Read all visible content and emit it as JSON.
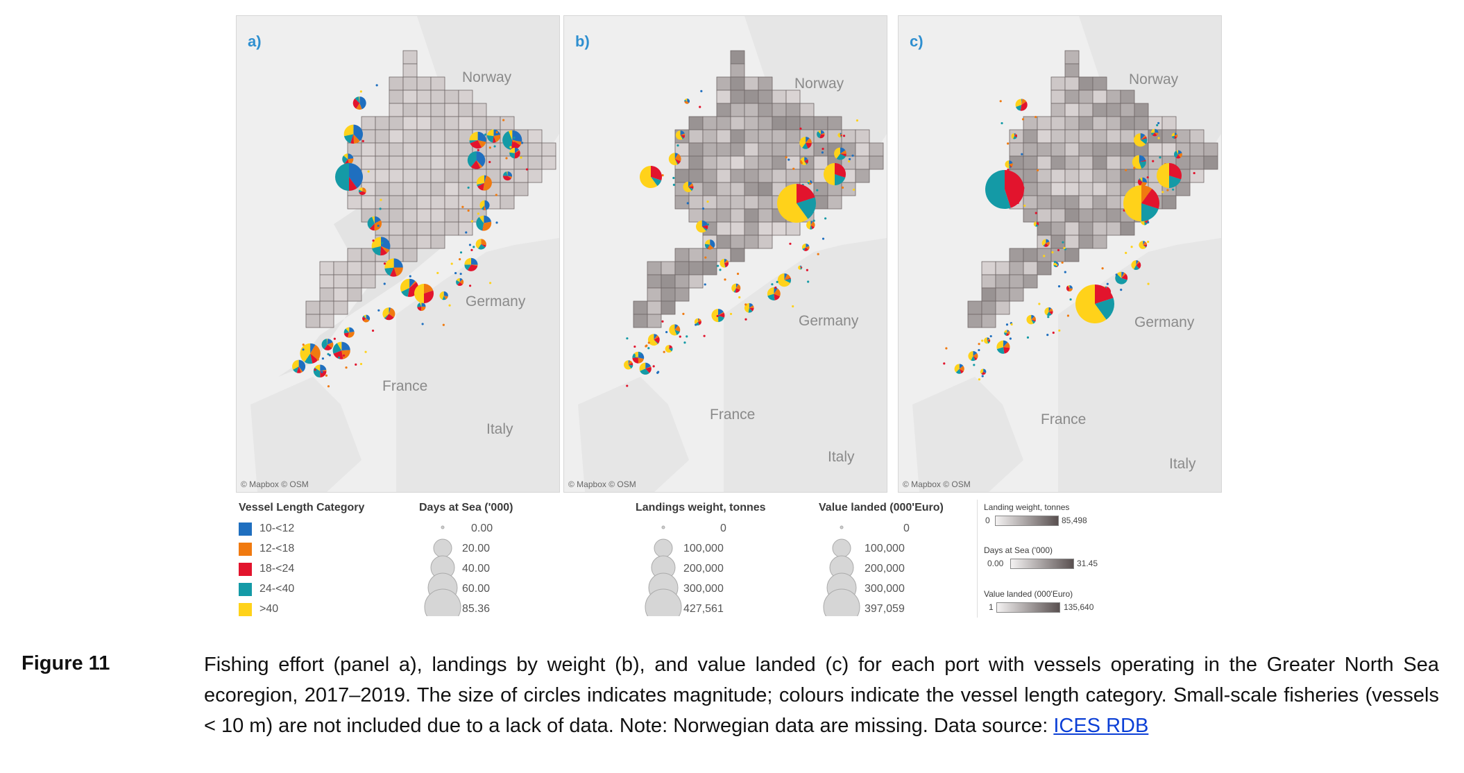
{
  "panels": [
    {
      "label": "a)",
      "countries": [
        "Norway",
        "Germany",
        "France",
        "Italy"
      ],
      "credit": "© Mapbox © OSM"
    },
    {
      "label": "b)",
      "countries": [
        "Norway",
        "Germany",
        "France",
        "Italy"
      ],
      "credit": "© Mapbox © OSM"
    },
    {
      "label": "c)",
      "countries": [
        "Norway",
        "Germany",
        "France",
        "Italy"
      ],
      "credit": "© Mapbox © OSM"
    }
  ],
  "vessel_legend": {
    "title": "Vessel Length Category",
    "items": [
      {
        "label": "10-<12",
        "color": "#1f6fbf"
      },
      {
        "label": "12-<18",
        "color": "#f07a10"
      },
      {
        "label": "18-<24",
        "color": "#e2142d"
      },
      {
        "label": "24-<40",
        "color": "#149aa6"
      },
      {
        "label": ">40",
        "color": "#ffd21a"
      }
    ]
  },
  "days_legend": {
    "title": "Days at Sea ('000)",
    "values": [
      "0.00",
      "20.00",
      "40.00",
      "60.00",
      "85.36"
    ]
  },
  "landings_legend": {
    "title": "Landings weight, tonnes",
    "values": [
      "0",
      "100,000",
      "200,000",
      "300,000",
      "427,561"
    ]
  },
  "value_legend": {
    "title": "Value landed (000'Euro)",
    "values": [
      "0",
      "100,000",
      "200,000",
      "300,000",
      "397,059"
    ]
  },
  "gradient_legends": [
    {
      "title": "Landing weight, tonnes",
      "min": "0",
      "max": "85,498"
    },
    {
      "title": "Days at Sea ('000)",
      "min": "0.00",
      "max": "31.45"
    },
    {
      "title": "Value landed (000'Euro)",
      "min": "1",
      "max": "135,640"
    }
  ],
  "caption": {
    "label": "Figure 11",
    "text": "Fishing effort (panel a), landings by weight (b), and value landed (c) for each port with vessels operating in the Greater North Sea ecoregion, 2017–2019. The size of circles indicates magnitude; colours indicate the vessel length category. Small-scale fisheries (vessels < 10 m) are not included due to a lack of data. Note: Norwegian data are missing. Data source:",
    "link": "ICES RDB"
  }
}
